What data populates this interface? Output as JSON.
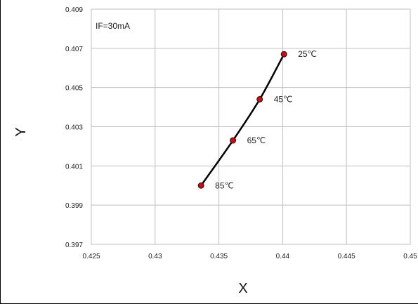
{
  "chart_data": {
    "type": "line",
    "title": "",
    "annotation": "IF=30mA",
    "xlabel": "X",
    "ylabel": "Y",
    "xlim": [
      0.425,
      0.45
    ],
    "ylim": [
      0.397,
      0.409
    ],
    "x_ticks": [
      "0.425",
      "0.43",
      "0.435",
      "0.44",
      "0.445",
      "0.45"
    ],
    "y_ticks": [
      "0.397",
      "0.399",
      "0.401",
      "0.403",
      "0.405",
      "0.407",
      "0.409"
    ],
    "grid": true,
    "colors": {
      "line": "#000000",
      "marker": "#c0101a",
      "grid": "#bfbfbf"
    },
    "points": [
      {
        "x": 0.4401,
        "y": 0.4067,
        "label": "25℃"
      },
      {
        "x": 0.4382,
        "y": 0.4044,
        "label": "45℃"
      },
      {
        "x": 0.4361,
        "y": 0.4023,
        "label": "65℃"
      },
      {
        "x": 0.4336,
        "y": 0.4,
        "label": "85℃"
      }
    ]
  }
}
